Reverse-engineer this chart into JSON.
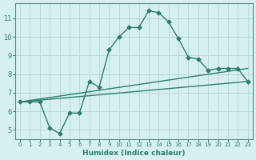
{
  "title": "",
  "xlabel": "Humidex (Indice chaleur)",
  "ylabel": "",
  "bg_color": "#d6f0ef",
  "grid_color": "#b8dada",
  "line_color": "#2e7d6e",
  "xlim": [
    -0.5,
    23.5
  ],
  "ylim": [
    4.5,
    11.8
  ],
  "xticks": [
    0,
    1,
    2,
    3,
    4,
    5,
    6,
    7,
    8,
    9,
    10,
    11,
    12,
    13,
    14,
    15,
    16,
    17,
    18,
    19,
    20,
    21,
    22,
    23
  ],
  "yticks": [
    5,
    6,
    7,
    8,
    9,
    10,
    11
  ],
  "series": [
    {
      "x": [
        0,
        1,
        2,
        3,
        4,
        5,
        6,
        7,
        8,
        9,
        10,
        11,
        12,
        13,
        14,
        15,
        16,
        17,
        18,
        19,
        20,
        21,
        22,
        23
      ],
      "y": [
        6.5,
        6.5,
        6.5,
        5.1,
        4.8,
        5.9,
        5.9,
        7.6,
        7.3,
        9.3,
        10.0,
        10.5,
        10.5,
        11.4,
        11.3,
        10.8,
        9.9,
        8.9,
        8.8,
        8.2,
        8.3,
        8.3,
        8.3,
        7.6
      ]
    },
    {
      "x": [
        0,
        23
      ],
      "y": [
        6.5,
        7.6
      ]
    },
    {
      "x": [
        0,
        23
      ],
      "y": [
        6.5,
        8.3
      ]
    }
  ]
}
